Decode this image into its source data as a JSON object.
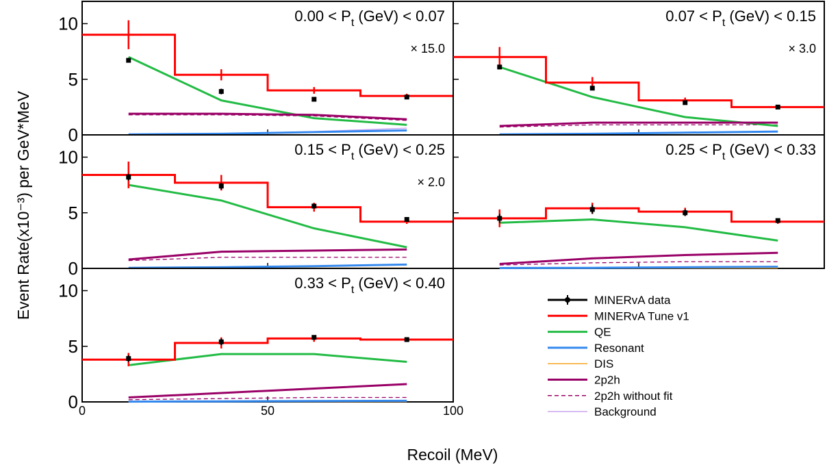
{
  "figure": {
    "ylabel": "Event Rate(x10⁻³) per GeV*MeV",
    "xlabel": "Recoil (MeV)",
    "x_ticks": [
      "0",
      "50",
      "100"
    ],
    "y_ticks": [
      "0",
      "5",
      "10"
    ],
    "xlim": [
      0,
      100
    ],
    "ylim": [
      0,
      12
    ]
  },
  "legend": {
    "placement": "bottom-right empty panel",
    "entries": [
      {
        "key": "data",
        "label": "MINERvA data",
        "color": "#000000",
        "style": "marker"
      },
      {
        "key": "tune",
        "label": "MINERvA Tune v1",
        "color": "#ff0000",
        "style": "solid"
      },
      {
        "key": "qe",
        "label": "QE",
        "color": "#22bb44",
        "style": "solid"
      },
      {
        "key": "res",
        "label": "Resonant",
        "color": "#3388ee",
        "style": "solid"
      },
      {
        "key": "dis",
        "label": "DIS",
        "color": "#f5a623",
        "style": "solid"
      },
      {
        "key": "mec",
        "label": "2p2h",
        "color": "#990066",
        "style": "solid"
      },
      {
        "key": "mec_nofit",
        "label": "2p2h without fit",
        "color": "#990066",
        "style": "dashed"
      },
      {
        "key": "bkg",
        "label": "Background",
        "color": "#c9a6f0",
        "style": "solid"
      }
    ]
  },
  "chart_data": [
    {
      "type": "line",
      "title_pre": "0.00 < P",
      "title_sub": "t",
      "title_post": " (GeV) < 0.07",
      "scale": "× 15.0",
      "bins": [
        0,
        25,
        50,
        75,
        100
      ],
      "x": [
        12.5,
        37.5,
        62.5,
        87.5
      ],
      "data": [
        6.7,
        3.9,
        3.2,
        3.4
      ],
      "data_err": [
        0.2,
        0.25,
        0.2,
        0.2
      ],
      "tune": [
        9.0,
        5.4,
        4.0,
        3.5
      ],
      "tune_err": [
        1.3,
        0.5,
        0.3,
        0.2
      ],
      "series": [
        {
          "key": "qe",
          "values": [
            7.0,
            3.1,
            1.5,
            0.9
          ]
        },
        {
          "key": "mec",
          "values": [
            1.9,
            1.9,
            1.8,
            1.4
          ]
        },
        {
          "key": "mec_nofit",
          "values": [
            1.8,
            1.8,
            1.7,
            1.3
          ]
        },
        {
          "key": "res",
          "values": [
            0.05,
            0.1,
            0.25,
            0.4
          ]
        },
        {
          "key": "dis",
          "values": [
            0.02,
            0.02,
            0.02,
            0.02
          ]
        },
        {
          "key": "bkg",
          "values": [
            0.05,
            0.1,
            0.3,
            0.6
          ]
        }
      ]
    },
    {
      "type": "line",
      "title_pre": "0.07 < P",
      "title_sub": "t",
      "title_post": " (GeV) < 0.15",
      "scale": "× 3.0",
      "bins": [
        0,
        25,
        50,
        75,
        100
      ],
      "x": [
        12.5,
        37.5,
        62.5,
        87.5
      ],
      "data": [
        6.1,
        4.2,
        2.9,
        2.5
      ],
      "data_err": [
        0.2,
        0.2,
        0.15,
        0.1
      ],
      "tune": [
        7.0,
        4.7,
        3.1,
        2.5
      ],
      "tune_err": [
        0.9,
        0.5,
        0.25,
        0.15
      ],
      "series": [
        {
          "key": "qe",
          "values": [
            6.1,
            3.4,
            1.6,
            0.8
          ]
        },
        {
          "key": "mec",
          "values": [
            0.8,
            1.1,
            1.1,
            1.1
          ]
        },
        {
          "key": "mec_nofit",
          "values": [
            0.7,
            0.9,
            0.9,
            0.9
          ]
        },
        {
          "key": "res",
          "values": [
            0.05,
            0.1,
            0.2,
            0.3
          ]
        },
        {
          "key": "dis",
          "values": [
            0.02,
            0.02,
            0.02,
            0.02
          ]
        },
        {
          "key": "bkg",
          "values": [
            0.05,
            0.1,
            0.2,
            0.3
          ]
        }
      ]
    },
    {
      "type": "line",
      "title_pre": "0.15 < P",
      "title_sub": "t",
      "title_post": " (GeV) < 0.25",
      "scale": "× 2.0",
      "bins": [
        0,
        25,
        50,
        75,
        100
      ],
      "x": [
        12.5,
        37.5,
        62.5,
        87.5
      ],
      "data": [
        8.2,
        7.4,
        5.6,
        4.4
      ],
      "data_err": [
        0.3,
        0.3,
        0.2,
        0.15
      ],
      "tune": [
        8.4,
        7.7,
        5.5,
        4.2
      ],
      "tune_err": [
        1.2,
        0.7,
        0.4,
        0.2
      ],
      "series": [
        {
          "key": "qe",
          "values": [
            7.5,
            6.1,
            3.6,
            1.9
          ]
        },
        {
          "key": "mec",
          "values": [
            0.8,
            1.5,
            1.6,
            1.7
          ]
        },
        {
          "key": "mec_nofit",
          "values": [
            0.7,
            1.0,
            1.0,
            1.0
          ]
        },
        {
          "key": "res",
          "values": [
            0.05,
            0.1,
            0.2,
            0.35
          ]
        },
        {
          "key": "dis",
          "values": [
            0.02,
            0.02,
            0.03,
            0.04
          ]
        },
        {
          "key": "bkg",
          "values": [
            0.05,
            0.1,
            0.2,
            0.3
          ]
        }
      ]
    },
    {
      "type": "line",
      "title_pre": "0.25 < P",
      "title_sub": "t",
      "title_post": " (GeV) < 0.33",
      "scale": "",
      "bins": [
        0,
        25,
        50,
        75,
        100
      ],
      "x": [
        12.5,
        37.5,
        62.5,
        87.5
      ],
      "data": [
        4.5,
        5.3,
        5.0,
        4.3
      ],
      "data_err": [
        0.4,
        0.4,
        0.3,
        0.15
      ],
      "tune": [
        4.5,
        5.4,
        5.1,
        4.2
      ],
      "tune_err": [
        0.8,
        0.5,
        0.35,
        0.2
      ],
      "series": [
        {
          "key": "qe",
          "values": [
            4.1,
            4.4,
            3.7,
            2.5
          ]
        },
        {
          "key": "mec",
          "values": [
            0.4,
            0.9,
            1.2,
            1.4
          ]
        },
        {
          "key": "mec_nofit",
          "values": [
            0.3,
            0.5,
            0.6,
            0.6
          ]
        },
        {
          "key": "res",
          "values": [
            0.03,
            0.05,
            0.1,
            0.15
          ]
        },
        {
          "key": "dis",
          "values": [
            0.02,
            0.02,
            0.03,
            0.04
          ]
        },
        {
          "key": "bkg",
          "values": [
            0.02,
            0.05,
            0.08,
            0.1
          ]
        }
      ]
    },
    {
      "type": "line",
      "title_pre": "0.33 < P",
      "title_sub": "t",
      "title_post": " (GeV) < 0.40",
      "scale": "",
      "bins": [
        0,
        25,
        50,
        75,
        100
      ],
      "x": [
        12.5,
        37.5,
        62.5,
        87.5
      ],
      "data": [
        3.9,
        5.4,
        5.8,
        5.6
      ],
      "data_err": [
        0.3,
        0.3,
        0.2,
        0.2
      ],
      "tune": [
        3.8,
        5.3,
        5.7,
        5.6
      ],
      "tune_err": [
        0.6,
        0.5,
        0.3,
        0.2
      ],
      "series": [
        {
          "key": "qe",
          "values": [
            3.3,
            4.3,
            4.3,
            3.6
          ]
        },
        {
          "key": "mec",
          "values": [
            0.4,
            0.8,
            1.2,
            1.6
          ]
        },
        {
          "key": "mec_nofit",
          "values": [
            0.2,
            0.3,
            0.4,
            0.4
          ]
        },
        {
          "key": "res",
          "values": [
            0.02,
            0.05,
            0.08,
            0.1
          ]
        },
        {
          "key": "dis",
          "values": [
            0.02,
            0.02,
            0.02,
            0.03
          ]
        },
        {
          "key": "bkg",
          "values": [
            0.02,
            0.05,
            0.08,
            0.1
          ]
        }
      ]
    }
  ]
}
